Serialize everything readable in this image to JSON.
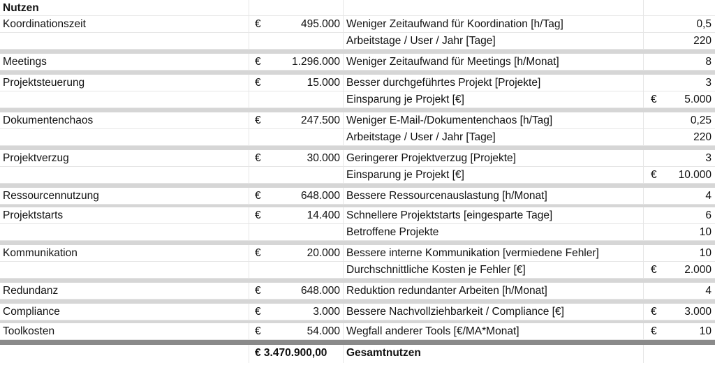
{
  "title": "Nutzen",
  "groups": [
    {
      "rows": [
        {
          "name": "Koordinationszeit",
          "cur": "€",
          "value": "495.000",
          "param": "Weniger Zeitaufwand für Koordination [h/Tag]",
          "pcur": "",
          "pval": "0,5"
        },
        {
          "name": "",
          "cur": "",
          "value": "",
          "param": "Arbeitstage / User / Jahr [Tage]",
          "pcur": "",
          "pval": "220"
        }
      ],
      "sep": "normal"
    },
    {
      "rows": [
        {
          "name": "Meetings",
          "cur": "€",
          "value": "1.296.000",
          "param": "Weniger Zeitaufwand für Meetings [h/Monat]",
          "pcur": "",
          "pval": "8"
        }
      ],
      "sep": "normal"
    },
    {
      "rows": [
        {
          "name": "Projektsteuerung",
          "cur": "€",
          "value": "15.000",
          "param": "Besser durchgeführtes Projekt [Projekte]",
          "pcur": "",
          "pval": "3"
        },
        {
          "name": "",
          "cur": "",
          "value": "",
          "param": "Einsparung je Projekt [€]",
          "pcur": "€",
          "pval": "5.000"
        }
      ],
      "sep": "normal"
    },
    {
      "rows": [
        {
          "name": "Dokumentenchaos",
          "cur": "€",
          "value": "247.500",
          "param": "Weniger E-Mail-/Dokumentenchaos  [h/Tag]",
          "pcur": "",
          "pval": "0,25"
        },
        {
          "name": "",
          "cur": "",
          "value": "",
          "param": "Arbeitstage / User / Jahr [Tage]",
          "pcur": "",
          "pval": "220"
        }
      ],
      "sep": "normal"
    },
    {
      "rows": [
        {
          "name": "Projektverzug",
          "cur": "€",
          "value": "30.000",
          "param": "Geringerer Projektverzug [Projekte]",
          "pcur": "",
          "pval": "3"
        },
        {
          "name": "",
          "cur": "",
          "value": "",
          "param": "Einsparung je Projekt [€]",
          "pcur": "€",
          "pval": "10.000"
        }
      ],
      "sep": "normal"
    },
    {
      "rows": [
        {
          "name": "Ressourcennutzung",
          "cur": "€",
          "value": "648.000",
          "param": "Bessere Ressourcenauslastung [h/Monat]",
          "pcur": "",
          "pval": "4"
        }
      ],
      "sep": "thin"
    },
    {
      "rows": [
        {
          "name": "Projektstarts",
          "cur": "€",
          "value": "14.400",
          "param": "Schnellere Projektstarts [eingesparte Tage]",
          "pcur": "",
          "pval": "6"
        },
        {
          "name": "",
          "cur": "",
          "value": "",
          "param": "Betroffene Projekte",
          "pcur": "",
          "pval": "10"
        }
      ],
      "sep": "normal"
    },
    {
      "rows": [
        {
          "name": "Kommunikation",
          "cur": "€",
          "value": "20.000",
          "param": "Bessere interne Kommunikation [vermiedene Fehler]",
          "pcur": "",
          "pval": "10"
        },
        {
          "name": "",
          "cur": "",
          "value": "",
          "param": "Durchschnittliche Kosten je Fehler [€]",
          "pcur": "€",
          "pval": "2.000"
        }
      ],
      "sep": "normal"
    },
    {
      "rows": [
        {
          "name": "Redundanz",
          "cur": "€",
          "value": "648.000",
          "param": "Reduktion redundanter Arbeiten [h/Monat]",
          "pcur": "",
          "pval": "4"
        }
      ],
      "sep": "normal"
    },
    {
      "rows": [
        {
          "name": "Compliance",
          "cur": "€",
          "value": "3.000",
          "param": "Bessere Nachvollziehbarkeit / Compliance [€]",
          "pcur": "€",
          "pval": "3.000"
        }
      ],
      "sep": "thin"
    },
    {
      "rows": [
        {
          "name": "Toolkosten",
          "cur": "€",
          "value": "54.000",
          "param": "Wegfall anderer Tools [€/MA*Monat]",
          "pcur": "€",
          "pval": "10"
        }
      ],
      "sep": "dark"
    }
  ],
  "total": {
    "value": "€ 3.470.900,00",
    "label": "Gesamtnutzen"
  }
}
